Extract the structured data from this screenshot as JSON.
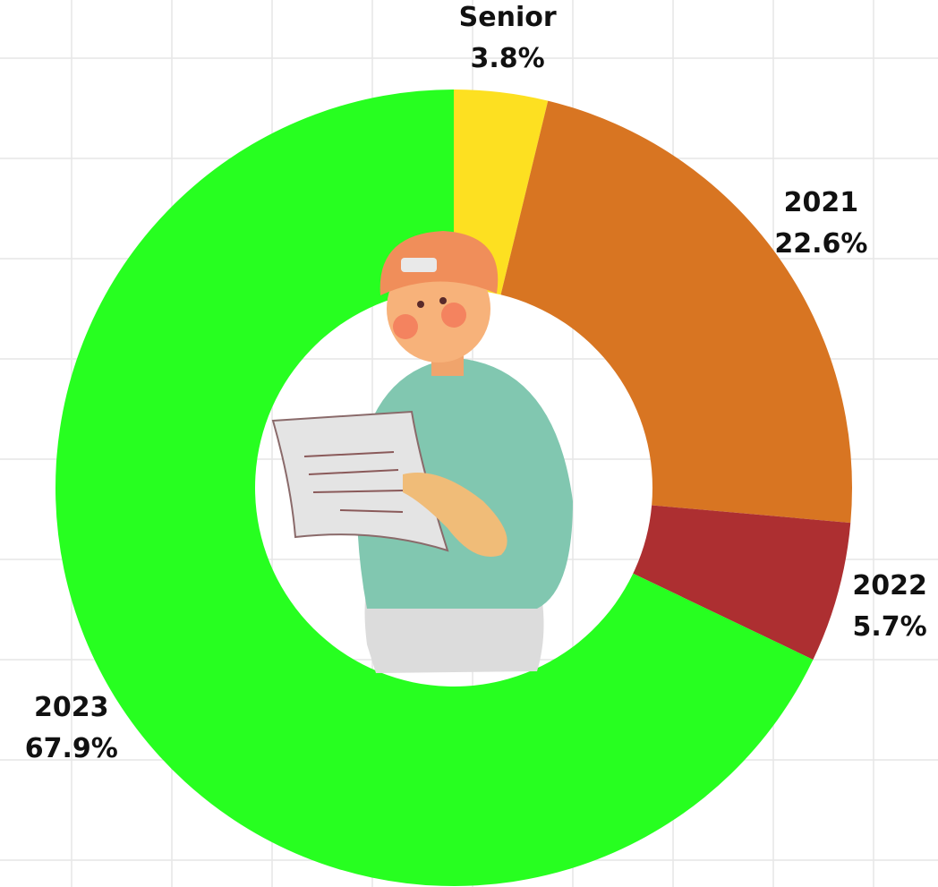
{
  "chart_data": {
    "type": "donut",
    "categories": [
      "Senior",
      "2021",
      "2022",
      "2023"
    ],
    "values": [
      3.8,
      22.6,
      5.7,
      67.9
    ],
    "value_labels": [
      "3.8%",
      "22.6%",
      "5.7%",
      "67.9%"
    ],
    "colors": [
      "#fde021",
      "#d87522",
      "#ad2f31",
      "#27ff20"
    ]
  }
}
